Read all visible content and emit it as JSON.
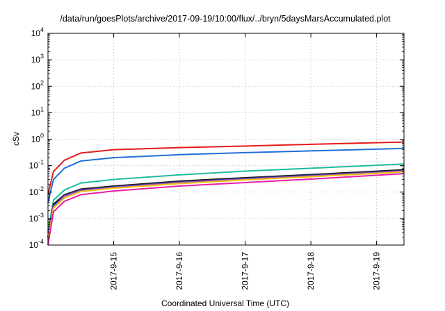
{
  "chart_data": {
    "type": "line",
    "title": "/data/run/goesPlots/archive/2017-09-19/10:00/flux/../bryn/5daysMarsAccumulated.plot",
    "xlabel": "Coordinated Universal Time (UTC)",
    "ylabel": "cSv",
    "y_scale": "log",
    "ylim": [
      0.0001,
      10000
    ],
    "xlim": [
      "2017-09-14 00:00",
      "2017-09-19 10:00"
    ],
    "y_ticks": [
      {
        "base": "10",
        "exp": "-4",
        "value": 0.0001
      },
      {
        "base": "10",
        "exp": "-3",
        "value": 0.001
      },
      {
        "base": "10",
        "exp": "-2",
        "value": 0.01
      },
      {
        "base": "10",
        "exp": "-1",
        "value": 0.1
      },
      {
        "base": "10",
        "exp": "0",
        "value": 1
      },
      {
        "base": "10",
        "exp": "1",
        "value": 10
      },
      {
        "base": "10",
        "exp": "2",
        "value": 100
      },
      {
        "base": "10",
        "exp": "3",
        "value": 1000
      },
      {
        "base": "10",
        "exp": "4",
        "value": 10000
      }
    ],
    "x_ticks": [
      {
        "label": "2017-9-15",
        "date": "2017-09-15"
      },
      {
        "label": "2017-9-16",
        "date": "2017-09-16"
      },
      {
        "label": "2017-9-17",
        "date": "2017-09-17"
      },
      {
        "label": "2017-9-18",
        "date": "2017-09-18"
      },
      {
        "label": "2017-9-19",
        "date": "2017-09-19"
      }
    ],
    "grid": true,
    "series": [
      {
        "color": "#e41a1c",
        "x": [
          "2017-09-14 00:00",
          "2017-09-14 02:00",
          "2017-09-14 06:00",
          "2017-09-14 12:00",
          "2017-09-15 00:00",
          "2017-09-16 00:00",
          "2017-09-17 00:00",
          "2017-09-18 00:00",
          "2017-09-19 10:00"
        ],
        "y": [
          0.008,
          0.06,
          0.16,
          0.3,
          0.4,
          0.48,
          0.55,
          0.64,
          0.78
        ]
      },
      {
        "color": "#1f6fd6",
        "x": [
          "2017-09-14 00:00",
          "2017-09-14 02:00",
          "2017-09-14 06:00",
          "2017-09-14 12:00",
          "2017-09-15 00:00",
          "2017-09-16 00:00",
          "2017-09-17 00:00",
          "2017-09-18 00:00",
          "2017-09-19 10:00"
        ],
        "y": [
          0.004,
          0.03,
          0.08,
          0.15,
          0.2,
          0.26,
          0.31,
          0.36,
          0.45
        ]
      },
      {
        "color": "#1abc9c",
        "x": [
          "2017-09-14 00:00",
          "2017-09-14 02:00",
          "2017-09-14 06:00",
          "2017-09-14 12:00",
          "2017-09-15 00:00",
          "2017-09-16 00:00",
          "2017-09-17 00:00",
          "2017-09-18 00:00",
          "2017-09-19 10:00"
        ],
        "y": [
          0.0003,
          0.005,
          0.012,
          0.022,
          0.03,
          0.045,
          0.062,
          0.08,
          0.115
        ]
      },
      {
        "color": "#1a1a1a",
        "x": [
          "2017-09-14 00:00",
          "2017-09-14 02:00",
          "2017-09-14 06:00",
          "2017-09-14 12:00",
          "2017-09-15 00:00",
          "2017-09-16 00:00",
          "2017-09-17 00:00",
          "2017-09-18 00:00",
          "2017-09-19 10:00"
        ],
        "y": [
          0.0002,
          0.0035,
          0.008,
          0.013,
          0.017,
          0.026,
          0.035,
          0.046,
          0.07
        ]
      },
      {
        "color": "#2b2b8c",
        "x": [
          "2017-09-14 00:00",
          "2017-09-14 02:00",
          "2017-09-14 06:00",
          "2017-09-14 12:00",
          "2017-09-15 00:00",
          "2017-09-16 00:00",
          "2017-09-17 00:00",
          "2017-09-18 00:00",
          "2017-09-19 10:00"
        ],
        "y": [
          0.0002,
          0.003,
          0.0075,
          0.012,
          0.016,
          0.024,
          0.033,
          0.043,
          0.065
        ]
      },
      {
        "color": "#9b59b6",
        "x": [
          "2017-09-14 00:00",
          "2017-09-14 02:00",
          "2017-09-14 06:00",
          "2017-09-14 12:00",
          "2017-09-15 00:00",
          "2017-09-16 00:00",
          "2017-09-17 00:00",
          "2017-09-18 00:00",
          "2017-09-19 10:00"
        ],
        "y": [
          0.00018,
          0.0028,
          0.007,
          0.0115,
          0.015,
          0.023,
          0.031,
          0.041,
          0.062
        ]
      },
      {
        "color": "#f1c40f",
        "x": [
          "2017-09-14 00:00",
          "2017-09-14 02:00",
          "2017-09-14 06:00",
          "2017-09-14 12:00",
          "2017-09-15 00:00",
          "2017-09-16 00:00",
          "2017-09-17 00:00",
          "2017-09-18 00:00",
          "2017-09-19 10:00"
        ],
        "y": [
          0.00015,
          0.0025,
          0.006,
          0.0105,
          0.014,
          0.021,
          0.029,
          0.038,
          0.058
        ]
      },
      {
        "color": "#e61ea8",
        "x": [
          "2017-09-14 00:00",
          "2017-09-14 02:00",
          "2017-09-14 06:00",
          "2017-09-14 12:00",
          "2017-09-15 00:00",
          "2017-09-16 00:00",
          "2017-09-17 00:00",
          "2017-09-18 00:00",
          "2017-09-19 10:00"
        ],
        "y": [
          0.0001,
          0.0018,
          0.0045,
          0.008,
          0.011,
          0.017,
          0.023,
          0.031,
          0.05
        ]
      }
    ]
  }
}
